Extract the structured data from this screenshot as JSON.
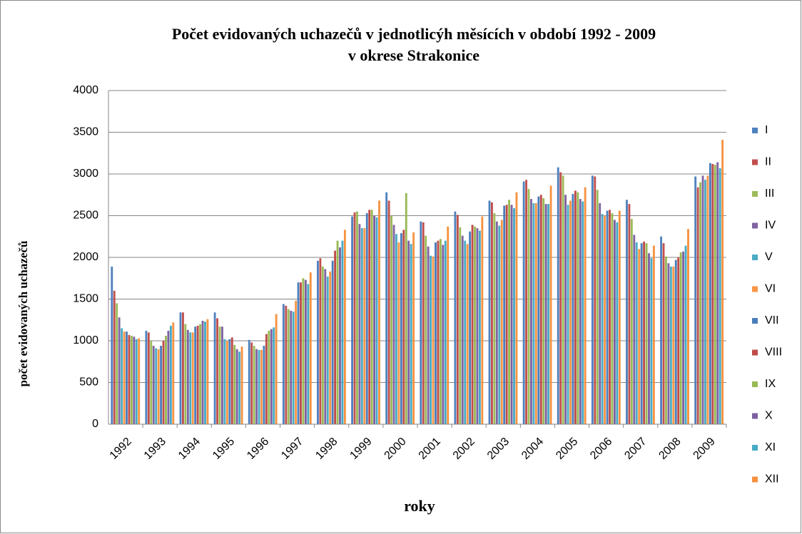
{
  "chart_data": {
    "type": "bar",
    "title_lines": [
      "Počet evidovaných uchazečů v jednotlicýh měsících v období 1992 - 2009",
      "v okrese Strakonice"
    ],
    "x_label": "roky",
    "y_label": "počet evidovaných uchazečů",
    "categories": [
      "1992",
      "1993",
      "1994",
      "1995",
      "1996",
      "1997",
      "1998",
      "1999",
      "2000",
      "2001",
      "2002",
      "2003",
      "2004",
      "2005",
      "2006",
      "2007",
      "2008",
      "2009"
    ],
    "ylim": [
      0,
      4000
    ],
    "yticks": [
      0,
      500,
      1000,
      1500,
      2000,
      2500,
      3000,
      3500,
      4000
    ],
    "grid": true,
    "legend": "right",
    "series": [
      {
        "name": "I",
        "color": "#4f81bd",
        "values": [
          1890,
          1120,
          1340,
          1340,
          1010,
          1440,
          1960,
          2490,
          2780,
          2430,
          2550,
          2680,
          2910,
          3080,
          2980,
          2690,
          2250,
          2970
        ]
      },
      {
        "name": "II",
        "color": "#c0504d",
        "values": [
          1600,
          1100,
          1340,
          1270,
          980,
          1420,
          1990,
          2540,
          2680,
          2420,
          2510,
          2660,
          2930,
          3020,
          2970,
          2640,
          2170,
          2840
        ]
      },
      {
        "name": "III",
        "color": "#9bbb59",
        "values": [
          1450,
          1000,
          1200,
          1170,
          940,
          1380,
          1890,
          2550,
          2500,
          2260,
          2360,
          2530,
          2820,
          2980,
          2810,
          2460,
          2010,
          2900
        ]
      },
      {
        "name": "IV",
        "color": "#8064a2",
        "values": [
          1280,
          940,
          1130,
          1170,
          900,
          1360,
          1860,
          2400,
          2390,
          2130,
          2260,
          2430,
          2700,
          2750,
          2650,
          2270,
          1930,
          2980
        ]
      },
      {
        "name": "V",
        "color": "#4bacc6",
        "values": [
          1150,
          910,
          1100,
          1020,
          890,
          1350,
          1770,
          2350,
          2280,
          2020,
          2200,
          2380,
          2650,
          2630,
          2520,
          2180,
          1890,
          2930
        ]
      },
      {
        "name": "VI",
        "color": "#f79646",
        "values": [
          1110,
          900,
          1100,
          1000,
          890,
          1480,
          1830,
          2350,
          2180,
          2010,
          2160,
          2450,
          2650,
          2680,
          2500,
          2100,
          1890,
          2980
        ]
      },
      {
        "name": "VII",
        "color": "#4a7ebb",
        "values": [
          1110,
          940,
          1170,
          1020,
          940,
          1700,
          1960,
          2530,
          2290,
          2180,
          2310,
          2620,
          2730,
          2760,
          2560,
          2170,
          1970,
          3130
        ]
      },
      {
        "name": "VIII",
        "color": "#be4b48",
        "values": [
          1070,
          1000,
          1180,
          1040,
          1080,
          1700,
          2080,
          2570,
          2330,
          2200,
          2390,
          2630,
          2750,
          2800,
          2570,
          2190,
          2000,
          3120
        ]
      },
      {
        "name": "IX",
        "color": "#98b954",
        "values": [
          1060,
          1060,
          1200,
          950,
          1120,
          1750,
          2200,
          2570,
          2770,
          2220,
          2370,
          2690,
          2710,
          2780,
          2530,
          2170,
          2060,
          3110
        ]
      },
      {
        "name": "X",
        "color": "#7d60a0",
        "values": [
          1050,
          1120,
          1240,
          900,
          1140,
          1730,
          2120,
          2500,
          2200,
          2150,
          2350,
          2630,
          2640,
          2700,
          2450,
          2050,
          2070,
          3140
        ]
      },
      {
        "name": "XI",
        "color": "#46aac5",
        "values": [
          1020,
          1180,
          1230,
          870,
          1160,
          1680,
          2200,
          2480,
          2160,
          2200,
          2320,
          2590,
          2640,
          2670,
          2420,
          1990,
          2140,
          3070
        ]
      },
      {
        "name": "XII",
        "color": "#f69240",
        "values": [
          1030,
          1220,
          1260,
          930,
          1320,
          1820,
          2330,
          2680,
          2300,
          2370,
          2490,
          2780,
          2860,
          2840,
          2560,
          2140,
          2340,
          3410
        ]
      }
    ]
  }
}
